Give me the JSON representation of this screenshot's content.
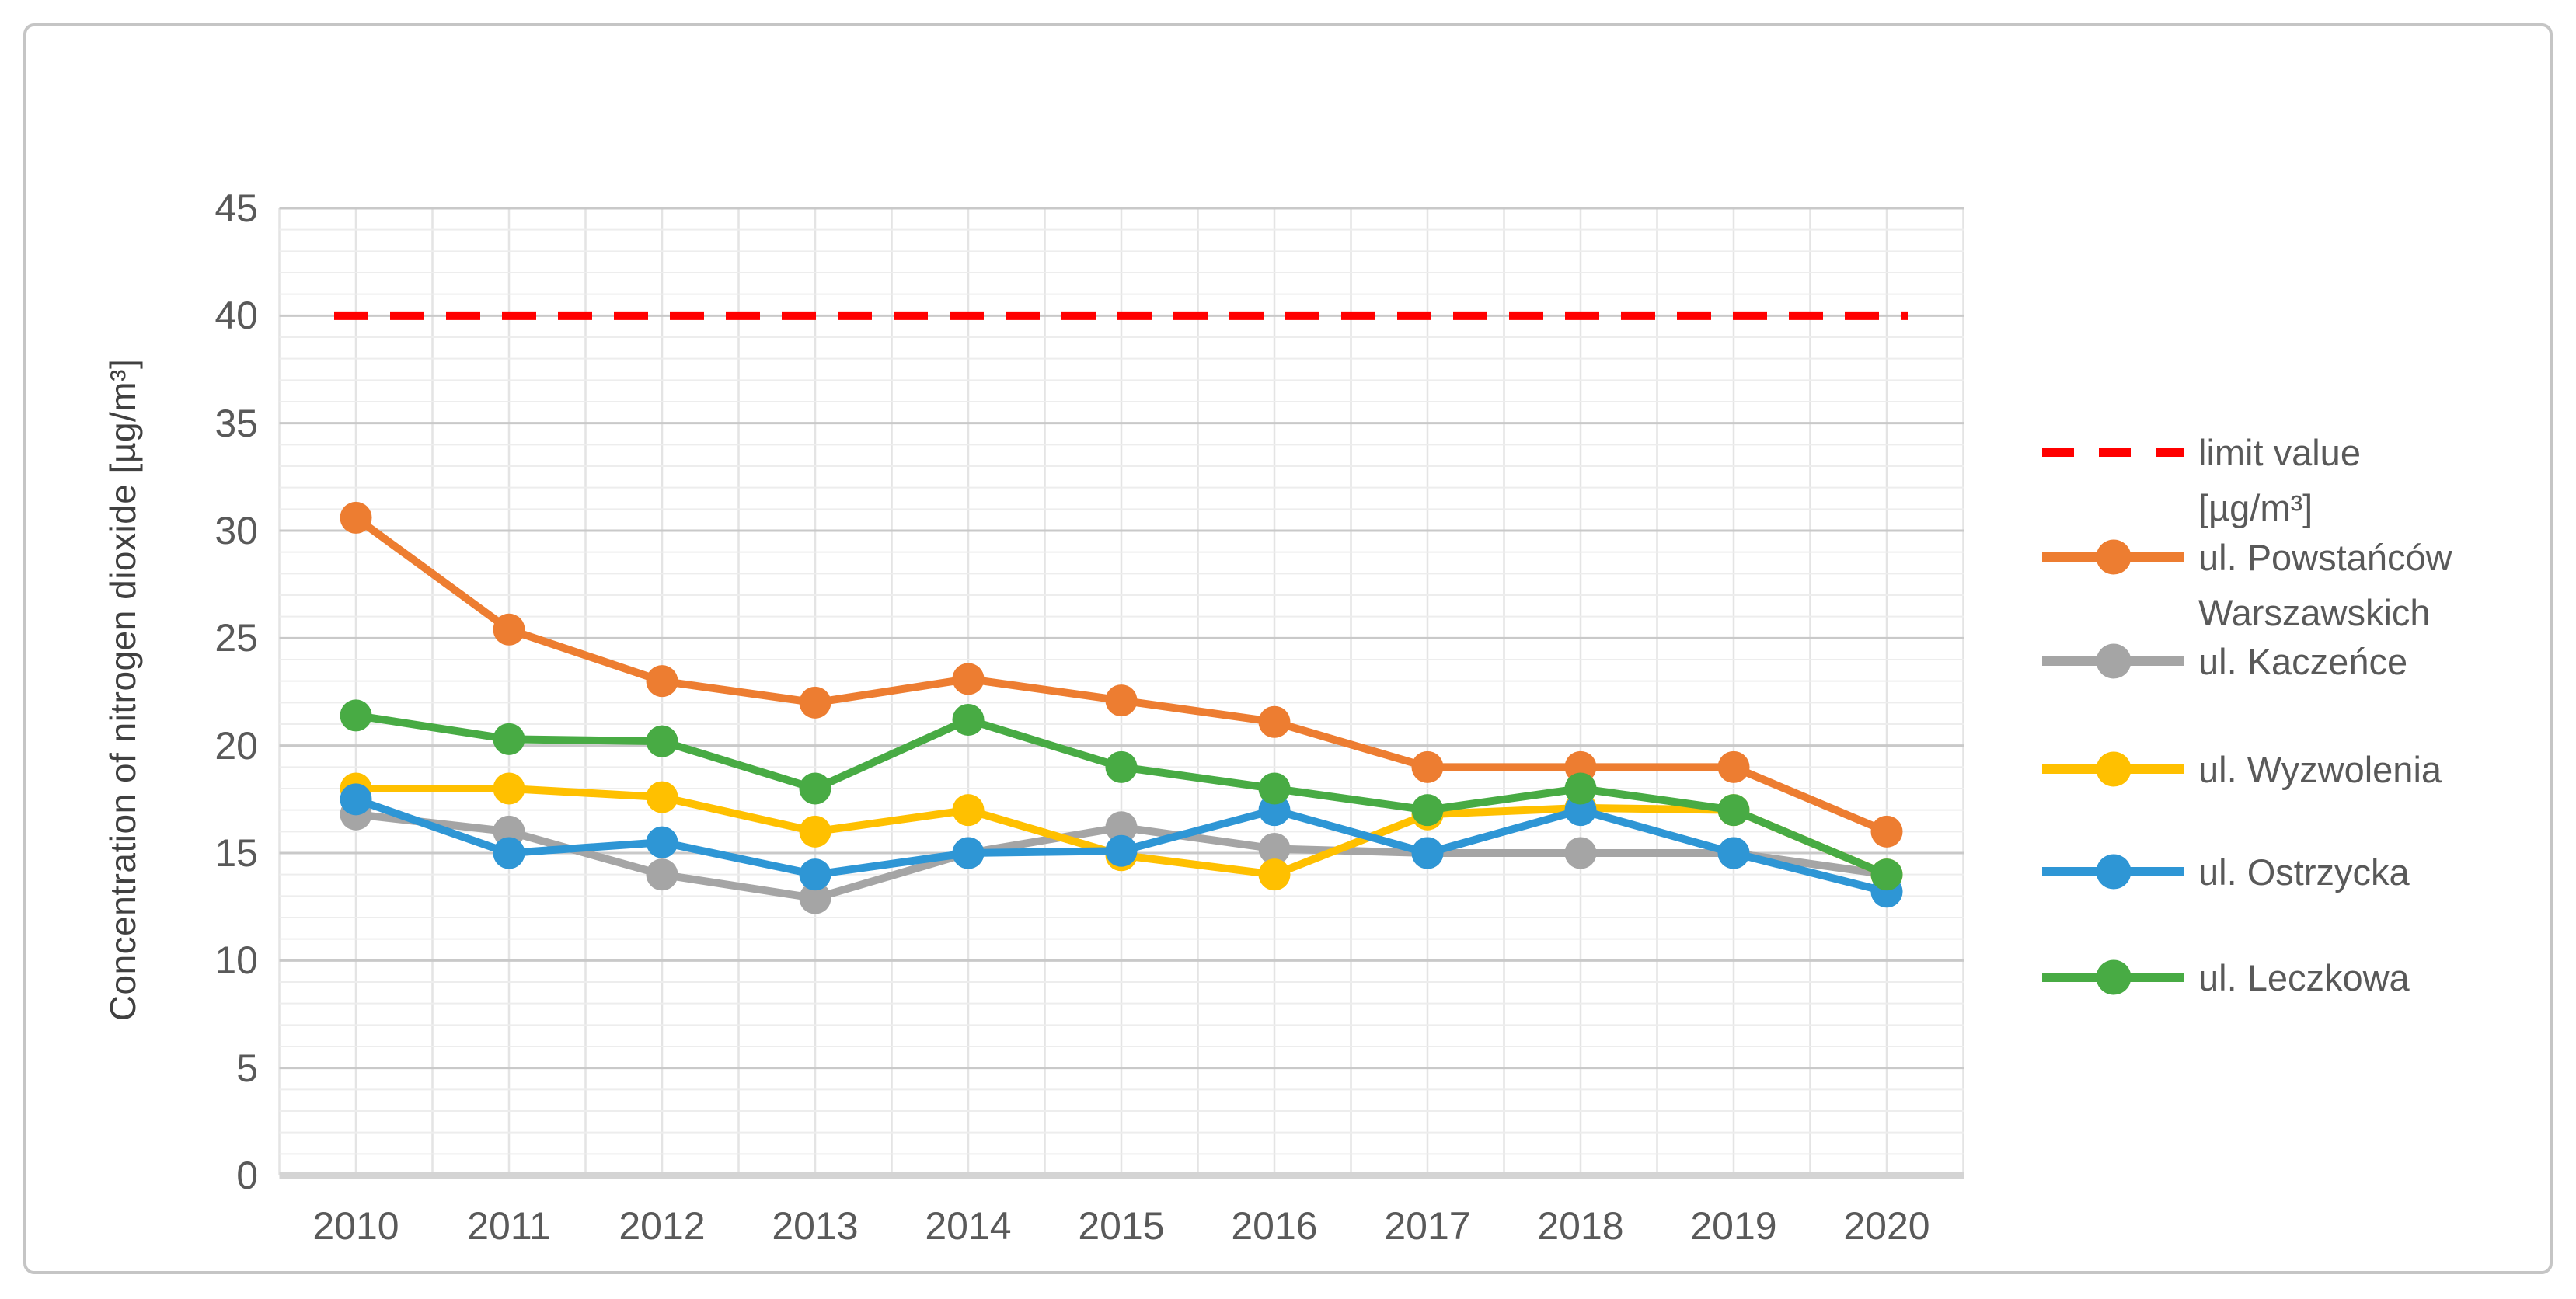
{
  "figure": {
    "background": "#ffffff",
    "border_color": "#c5c5c5",
    "text_color": "#595959"
  },
  "chart_data": {
    "type": "line",
    "title": "",
    "xlabel": "",
    "ylabel": "Concentration of nitrogen dioxide [µg/m³]",
    "ylim": [
      0,
      45
    ],
    "ytick_step": 5,
    "yticks": [
      0,
      5,
      10,
      15,
      20,
      25,
      30,
      35,
      40,
      45
    ],
    "grid": "horizontal minor every 1 and major every 5, light vertical category gridlines",
    "legend_position": "right",
    "categories": [
      "2010",
      "2011",
      "2012",
      "2013",
      "2014",
      "2015",
      "2016",
      "2017",
      "2018",
      "2019",
      "2020"
    ],
    "series": [
      {
        "name": "limit value [µg/m³]",
        "color": "#FF0000",
        "style": "dashed",
        "markers": false,
        "values": [
          40,
          40,
          40,
          40,
          40,
          40,
          40,
          40,
          40,
          40,
          40
        ]
      },
      {
        "name": "ul. Powstańców Warszawskich",
        "color": "#ED7D31",
        "style": "solid",
        "markers": true,
        "values": [
          30.6,
          25.4,
          23.0,
          22.0,
          23.1,
          22.1,
          21.1,
          19.0,
          19.0,
          19.0,
          16.0
        ]
      },
      {
        "name": "ul. Kaczeńce",
        "color": "#A5A5A5",
        "style": "solid",
        "markers": true,
        "values": [
          16.8,
          16.0,
          14.0,
          12.9,
          15.0,
          16.2,
          15.2,
          15.0,
          15.0,
          15.0,
          14.0
        ]
      },
      {
        "name": "ul. Wyzwolenia",
        "color": "#FFC000",
        "style": "solid",
        "markers": true,
        "values": [
          18.0,
          18.0,
          17.6,
          16.0,
          17.0,
          14.9,
          14.0,
          16.8,
          17.1,
          17.0,
          14.0
        ]
      },
      {
        "name": "ul. Ostrzycka",
        "color": "#2E96D5",
        "style": "solid",
        "markers": true,
        "values": [
          17.5,
          15.0,
          15.5,
          14.0,
          15.0,
          15.1,
          17.0,
          15.0,
          17.0,
          15.0,
          13.2
        ]
      },
      {
        "name": "ul. Leczkowa",
        "color": "#48AB44",
        "style": "solid",
        "markers": true,
        "values": [
          21.4,
          20.3,
          20.2,
          18.0,
          21.2,
          19.0,
          18.0,
          17.0,
          18.0,
          17.0,
          14.0
        ]
      }
    ]
  },
  "legend": {
    "items": [
      {
        "label": "limit value",
        "label2": "[µg/m³]",
        "color": "#FF0000",
        "marker": "dashed"
      },
      {
        "label": "ul. Powstańców",
        "label2": "Warszawskich",
        "color": "#ED7D31",
        "marker": "line-dot"
      },
      {
        "label": "ul. Kaczeńce",
        "label2": "",
        "color": "#A5A5A5",
        "marker": "line-dot"
      },
      {
        "label": "ul. Wyzwolenia",
        "label2": "",
        "color": "#FFC000",
        "marker": "line-dot"
      },
      {
        "label": "ul. Ostrzycka",
        "label2": "",
        "color": "#2E96D5",
        "marker": "line-dot"
      },
      {
        "label": "ul. Leczkowa",
        "label2": "",
        "color": "#48AB44",
        "marker": "line-dot"
      }
    ]
  }
}
